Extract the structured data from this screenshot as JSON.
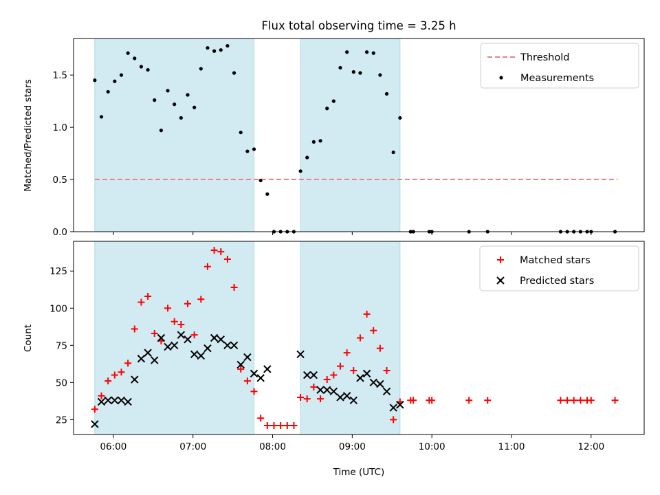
{
  "chart_data": [
    {
      "type": "scatter",
      "title": "Flux total observing time = 3.25 h",
      "xlabel": "",
      "ylabel": "Matched/Predicted stars",
      "xlim": [
        "05:30",
        "12:40"
      ],
      "ylim": [
        0,
        1.85
      ],
      "yticks": [
        0.0,
        0.5,
        1.0,
        1.5
      ],
      "ytick_labels": [
        "0.0",
        "0.5",
        "1.0",
        "1.5"
      ],
      "xticks": [
        "06:00",
        "07:00",
        "08:00",
        "09:00",
        "10:00",
        "11:00",
        "12:00"
      ],
      "xtick_labels": [],
      "shaded_spans": [
        [
          "05:46",
          "07:46"
        ],
        [
          "08:21",
          "09:36"
        ]
      ],
      "shade_color": "#add8e6",
      "threshold": {
        "name": "Threshold",
        "y": 0.5,
        "x_range": [
          "05:46",
          "12:20"
        ],
        "color": "#f08080",
        "style": "dashed"
      },
      "legend": {
        "position": "top-right",
        "entries": [
          "Threshold",
          "Measurements"
        ]
      },
      "series": [
        {
          "name": "Measurements",
          "color": "#000000",
          "marker": "dot",
          "points": [
            [
              "05:46",
              1.45
            ],
            [
              "05:51",
              1.1
            ],
            [
              "05:56",
              1.34
            ],
            [
              "06:01",
              1.44
            ],
            [
              "06:06",
              1.5
            ],
            [
              "06:11",
              1.71
            ],
            [
              "06:16",
              1.66
            ],
            [
              "06:21",
              1.58
            ],
            [
              "06:26",
              1.55
            ],
            [
              "06:31",
              1.26
            ],
            [
              "06:36",
              0.97
            ],
            [
              "06:41",
              1.35
            ],
            [
              "06:46",
              1.22
            ],
            [
              "06:51",
              1.09
            ],
            [
              "06:56",
              1.31
            ],
            [
              "07:01",
              1.19
            ],
            [
              "07:06",
              1.56
            ],
            [
              "07:11",
              1.76
            ],
            [
              "07:16",
              1.73
            ],
            [
              "07:21",
              1.74
            ],
            [
              "07:26",
              1.78
            ],
            [
              "07:31",
              1.52
            ],
            [
              "07:36",
              0.95
            ],
            [
              "07:41",
              0.77
            ],
            [
              "07:46",
              0.79
            ],
            [
              "07:51",
              0.49
            ],
            [
              "07:56",
              0.36
            ],
            [
              "08:01",
              0.0
            ],
            [
              "08:06",
              0.0
            ],
            [
              "08:11",
              0.0
            ],
            [
              "08:16",
              0.0
            ],
            [
              "08:21",
              0.58
            ],
            [
              "08:26",
              0.71
            ],
            [
              "08:31",
              0.86
            ],
            [
              "08:36",
              0.87
            ],
            [
              "08:41",
              1.18
            ],
            [
              "08:46",
              1.25
            ],
            [
              "08:51",
              1.57
            ],
            [
              "08:56",
              1.72
            ],
            [
              "09:01",
              1.53
            ],
            [
              "09:06",
              1.52
            ],
            [
              "09:11",
              1.72
            ],
            [
              "09:16",
              1.71
            ],
            [
              "09:21",
              1.5
            ],
            [
              "09:26",
              1.32
            ],
            [
              "09:31",
              0.76
            ],
            [
              "09:36",
              1.09
            ],
            [
              "09:44",
              0.0
            ],
            [
              "09:46",
              0.0
            ],
            [
              "09:58",
              0.0
            ],
            [
              "10:00",
              0.0
            ],
            [
              "10:28",
              0.0
            ],
            [
              "10:42",
              0.0
            ],
            [
              "11:37",
              0.0
            ],
            [
              "11:42",
              0.0
            ],
            [
              "11:47",
              0.0
            ],
            [
              "11:52",
              0.0
            ],
            [
              "11:57",
              0.0
            ],
            [
              "12:00",
              0.0
            ],
            [
              "12:18",
              0.0
            ]
          ]
        }
      ]
    },
    {
      "type": "scatter",
      "title": "",
      "xlabel": "Time (UTC)",
      "ylabel": "Count",
      "xlim": [
        "05:30",
        "12:40"
      ],
      "ylim": [
        15,
        145
      ],
      "yticks": [
        25,
        50,
        75,
        100,
        125
      ],
      "ytick_labels": [
        "25",
        "50",
        "75",
        "100",
        "125"
      ],
      "xticks": [
        "06:00",
        "07:00",
        "08:00",
        "09:00",
        "10:00",
        "11:00",
        "12:00"
      ],
      "xtick_labels": [
        "06:00",
        "07:00",
        "08:00",
        "09:00",
        "10:00",
        "11:00",
        "12:00"
      ],
      "shaded_spans": [
        [
          "05:46",
          "07:46"
        ],
        [
          "08:21",
          "09:36"
        ]
      ],
      "shade_color": "#add8e6",
      "legend": {
        "position": "top-right",
        "entries": [
          "Matched stars",
          "Predicted stars"
        ]
      },
      "series": [
        {
          "name": "Matched stars",
          "color": "#ff0000",
          "marker": "plus",
          "points": [
            [
              "05:46",
              32
            ],
            [
              "05:51",
              41
            ],
            [
              "05:56",
              51
            ],
            [
              "06:01",
              55
            ],
            [
              "06:06",
              57
            ],
            [
              "06:11",
              63
            ],
            [
              "06:16",
              86
            ],
            [
              "06:21",
              104
            ],
            [
              "06:26",
              108
            ],
            [
              "06:31",
              83
            ],
            [
              "06:36",
              78
            ],
            [
              "06:41",
              100
            ],
            [
              "06:46",
              91
            ],
            [
              "06:51",
              89
            ],
            [
              "06:56",
              103
            ],
            [
              "07:01",
              82
            ],
            [
              "07:06",
              106
            ],
            [
              "07:11",
              128
            ],
            [
              "07:16",
              139
            ],
            [
              "07:21",
              138
            ],
            [
              "07:26",
              133
            ],
            [
              "07:31",
              114
            ],
            [
              "07:36",
              59
            ],
            [
              "07:41",
              51
            ],
            [
              "07:46",
              44
            ],
            [
              "07:51",
              26
            ],
            [
              "07:56",
              21
            ],
            [
              "08:01",
              21
            ],
            [
              "08:06",
              21
            ],
            [
              "08:11",
              21
            ],
            [
              "08:16",
              21
            ],
            [
              "08:21",
              40
            ],
            [
              "08:26",
              39
            ],
            [
              "08:31",
              47
            ],
            [
              "08:36",
              39
            ],
            [
              "08:41",
              52
            ],
            [
              "08:46",
              55
            ],
            [
              "08:51",
              61
            ],
            [
              "08:56",
              70
            ],
            [
              "09:01",
              58
            ],
            [
              "09:06",
              80
            ],
            [
              "09:11",
              96
            ],
            [
              "09:16",
              85
            ],
            [
              "09:21",
              73
            ],
            [
              "09:26",
              58
            ],
            [
              "09:31",
              25
            ],
            [
              "09:36",
              37
            ],
            [
              "09:44",
              38
            ],
            [
              "09:46",
              38
            ],
            [
              "09:58",
              38
            ],
            [
              "10:00",
              38
            ],
            [
              "10:28",
              38
            ],
            [
              "10:42",
              38
            ],
            [
              "11:37",
              38
            ],
            [
              "11:42",
              38
            ],
            [
              "11:47",
              38
            ],
            [
              "11:52",
              38
            ],
            [
              "11:57",
              38
            ],
            [
              "12:00",
              38
            ],
            [
              "12:18",
              38
            ]
          ]
        },
        {
          "name": "Predicted stars",
          "color": "#000000",
          "marker": "x",
          "points": [
            [
              "05:46",
              22
            ],
            [
              "05:51",
              37
            ],
            [
              "05:56",
              38
            ],
            [
              "06:01",
              38
            ],
            [
              "06:06",
              38
            ],
            [
              "06:11",
              37
            ],
            [
              "06:16",
              52
            ],
            [
              "06:21",
              66
            ],
            [
              "06:26",
              70
            ],
            [
              "06:31",
              65
            ],
            [
              "06:36",
              80
            ],
            [
              "06:41",
              74
            ],
            [
              "06:46",
              75
            ],
            [
              "06:51",
              82
            ],
            [
              "06:56",
              79
            ],
            [
              "07:01",
              69
            ],
            [
              "07:06",
              68
            ],
            [
              "07:11",
              73
            ],
            [
              "07:16",
              80
            ],
            [
              "07:21",
              79
            ],
            [
              "07:26",
              75
            ],
            [
              "07:31",
              75
            ],
            [
              "07:36",
              62
            ],
            [
              "07:41",
              67
            ],
            [
              "07:46",
              56
            ],
            [
              "07:51",
              53
            ],
            [
              "07:56",
              59
            ],
            [
              "08:21",
              69
            ],
            [
              "08:26",
              55
            ],
            [
              "08:31",
              55
            ],
            [
              "08:36",
              45
            ],
            [
              "08:41",
              45
            ],
            [
              "08:46",
              44
            ],
            [
              "08:51",
              40
            ],
            [
              "08:56",
              41
            ],
            [
              "09:01",
              38
            ],
            [
              "09:06",
              53
            ],
            [
              "09:11",
              56
            ],
            [
              "09:16",
              50
            ],
            [
              "09:21",
              49
            ],
            [
              "09:26",
              44
            ],
            [
              "09:31",
              33
            ],
            [
              "09:36",
              35
            ]
          ]
        }
      ]
    }
  ]
}
